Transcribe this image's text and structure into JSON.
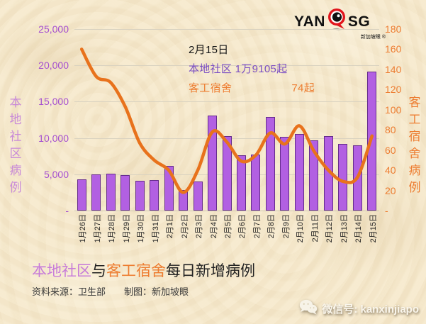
{
  "logo": {
    "yan": "YAN",
    "sg": "SG",
    "sub": "新加坡眼 ®"
  },
  "annotation": {
    "date": "2月15日",
    "local_line": "本地社区 1万9105起",
    "dorm_label": "客工宿舍",
    "dorm_value": "74起"
  },
  "left_axis": {
    "title": "本地社区病例",
    "ticks": [
      "25,000",
      "20,000",
      "15,000",
      "10,000",
      "5,000",
      "-"
    ]
  },
  "right_axis": {
    "title": "客工宿舍病例",
    "ticks": [
      "180",
      "160",
      "140",
      "120",
      "100",
      "80",
      "60",
      "40",
      "20",
      "-"
    ]
  },
  "main_title": {
    "part1": "本地社区",
    "part2": "与",
    "part3": "客工宿舍",
    "part4": "每日新增病例"
  },
  "source": {
    "label": "资料来源：卫生部",
    "maker": "制图：新加坡眼"
  },
  "watermark": {
    "text": "微信号: kanxinjiapo"
  },
  "colors": {
    "bar_fill": "#b260e2",
    "bar_border": "#652c8c",
    "line": "#e8721c",
    "left_axis": "#a54fd0",
    "left_axis_title": "#c98ad8",
    "right_axis": "#ed7d31",
    "annotation_purple": "#7b4fc3",
    "annotation_orange": "#ed7d31",
    "title_purple": "#c77bd9",
    "title_orange": "#ed7d31",
    "background": "#f6e9cc",
    "logo_red": "#e1151c"
  },
  "chart_data": {
    "type": "combo",
    "categories": [
      "1月26日",
      "1月27日",
      "1月28日",
      "1月29日",
      "1月30日",
      "1月31日",
      "2月1日",
      "2月2日",
      "2月3日",
      "2月4日",
      "2月5日",
      "2月6日",
      "2月7日",
      "2月8日",
      "2月9日",
      "2月10日",
      "2月11日",
      "2月12日",
      "2月13日",
      "2月14日",
      "2月15日"
    ],
    "series": [
      {
        "name": "本地社区病例",
        "type": "bar",
        "axis": "left",
        "values": [
          4300,
          4950,
          5100,
          4850,
          4100,
          4200,
          6150,
          2850,
          4000,
          13100,
          10250,
          7600,
          7700,
          12850,
          10200,
          10550,
          9700,
          10300,
          9200,
          8950,
          19105
        ]
      },
      {
        "name": "客工宿舍病例",
        "type": "line",
        "axis": "right",
        "values": [
          160,
          133,
          127,
          103,
          67,
          50,
          40,
          18,
          40,
          78,
          68,
          49,
          55,
          77,
          66,
          84,
          59,
          40,
          29,
          33,
          74
        ]
      }
    ],
    "left_ylim": [
      0,
      25000
    ],
    "right_ylim": [
      0,
      180
    ],
    "grid": true,
    "legend": false,
    "annotation_highlight": {
      "date": "2月15日",
      "local": 19105,
      "dorm": 74
    }
  }
}
